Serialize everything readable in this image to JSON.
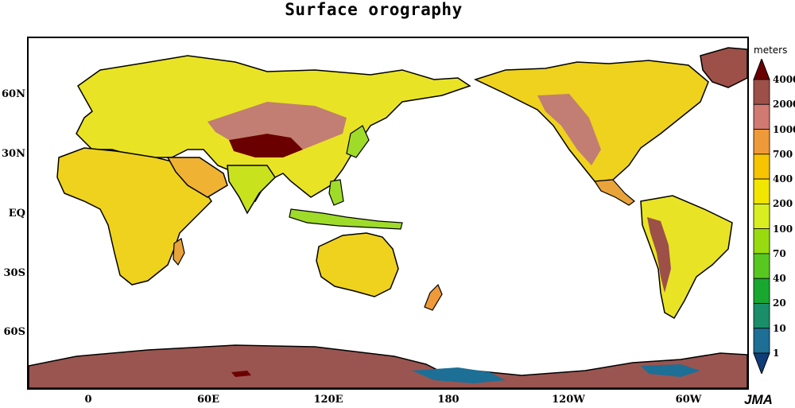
{
  "title": "Surface orography",
  "lat_labels": [
    "60N",
    "30N",
    "EQ",
    "30S",
    "60S"
  ],
  "lon_labels": [
    "0",
    "60E",
    "120E",
    "180",
    "120W",
    "60W"
  ],
  "colorbar": {
    "unit": "meters",
    "levels": [
      "4000",
      "2000",
      "1000",
      "700",
      "400",
      "200",
      "100",
      "70",
      "40",
      "20",
      "10",
      "1"
    ],
    "colors": [
      "#6b0000",
      "#9c5048",
      "#d07a72",
      "#ef9a38",
      "#f6c400",
      "#f2e600",
      "#d8ee20",
      "#98dc10",
      "#58c820",
      "#18a830",
      "#1a8e68",
      "#1d6f96",
      "#0e3d78"
    ]
  },
  "colors": {
    "land_low": "#9fdc2a",
    "land_mid": "#ece51a",
    "land_high": "#e8a33a",
    "highland": "#c27e72",
    "plateau": "#6b0000",
    "ice": "#9a5550",
    "ocean": "#ffffff",
    "coast": "#000000"
  },
  "logo": "JMA"
}
